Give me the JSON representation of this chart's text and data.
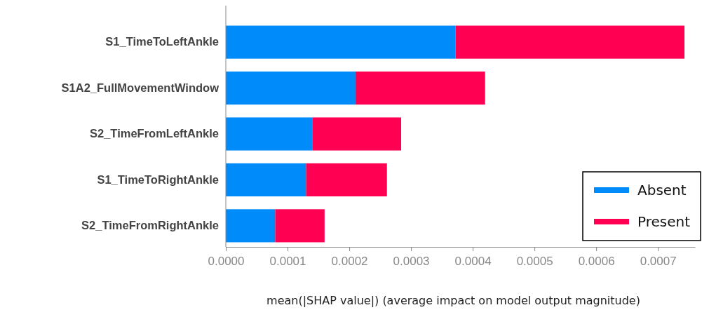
{
  "chart_data": {
    "type": "bar",
    "orientation": "horizontal",
    "stacked": true,
    "categories": [
      "S1_TimeToLeftAnkle",
      "S1A2_FullMovementWindow",
      "S2_TimeFromLeftAnkle",
      "S1_TimeToRightAnkle",
      "S2_TimeFromRightAnkle"
    ],
    "series": [
      {
        "name": "Absent",
        "color": "#008bfb",
        "values": [
          0.000372,
          0.00021,
          0.00014,
          0.00013,
          8e-05
        ]
      },
      {
        "name": "Present",
        "color": "#ff0052",
        "values": [
          0.000371,
          0.00021,
          0.000144,
          0.000131,
          8e-05
        ]
      }
    ],
    "xlim": [
      0,
      0.00076
    ],
    "xticks": [
      {
        "value": 0,
        "label": "0.0000"
      },
      {
        "value": 0.0001,
        "label": "0.0001"
      },
      {
        "value": 0.0002,
        "label": "0.0002"
      },
      {
        "value": 0.0003,
        "label": "0.0003"
      },
      {
        "value": 0.0004,
        "label": "0.0004"
      },
      {
        "value": 0.0005,
        "label": "0.0005"
      },
      {
        "value": 0.0006,
        "label": "0.0006"
      },
      {
        "value": 0.0007,
        "label": "0.0007"
      }
    ],
    "xlabel": "mean(|SHAP value|) (average impact on model output magnitude)",
    "legend": "bottom right",
    "grid": false
  }
}
